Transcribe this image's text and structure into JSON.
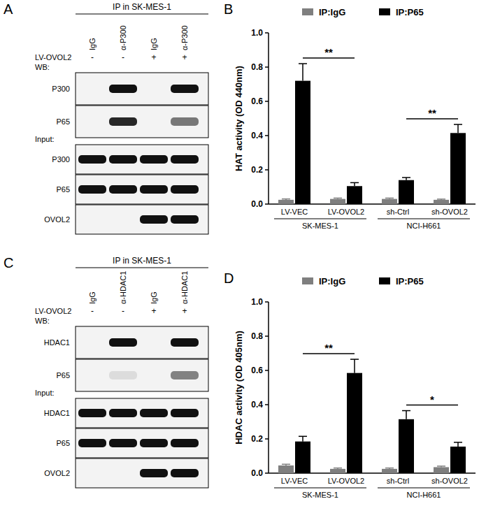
{
  "chart_data": [
    {
      "type": "bar",
      "panel": "B",
      "y_label": "HAT activity (OD 440nm)",
      "categories": [
        "LV-VEC",
        "LV-OVOL2",
        "sh-Ctrl",
        "sh-OVOL2"
      ],
      "groups": [
        {
          "label": "SK-MES-1",
          "count": 2
        },
        {
          "label": "NCI-H661",
          "count": 2
        }
      ],
      "series": [
        {
          "name": "IP:IgG",
          "color": "#7f7f7f",
          "values": [
            0.025,
            0.03,
            0.03,
            0.025
          ],
          "errors": [
            0.005,
            0.005,
            0.005,
            0.004
          ]
        },
        {
          "name": "IP:P65",
          "color": "#000000",
          "values": [
            0.72,
            0.105,
            0.14,
            0.415
          ],
          "errors": [
            0.1,
            0.02,
            0.015,
            0.05
          ]
        }
      ],
      "annotations": [
        {
          "text": "**",
          "between": [
            0,
            1
          ]
        },
        {
          "text": "**",
          "between": [
            2,
            3
          ]
        }
      ],
      "ylim": [
        0,
        1.0
      ],
      "yticks": [
        {
          "value": 0,
          "label": "0.0"
        },
        0.2,
        0.4,
        0.6,
        0.8,
        {
          "value": 1.0,
          "label": "1.0"
        }
      ],
      "legend": "top",
      "grid": false
    },
    {
      "type": "bar",
      "panel": "D",
      "y_label": "HDAC activity (OD 405nm)",
      "categories": [
        "LV-VEC",
        "LV-OVOL2",
        "sh-Ctrl",
        "sh-OVOL2"
      ],
      "groups": [
        {
          "label": "SK-MES-1",
          "count": 2
        },
        {
          "label": "NCI-H661",
          "count": 2
        }
      ],
      "series": [
        {
          "name": "IP:IgG",
          "color": "#7f7f7f",
          "values": [
            0.045,
            0.025,
            0.025,
            0.035
          ],
          "errors": [
            0.007,
            0.005,
            0.005,
            0.006
          ]
        },
        {
          "name": "IP:P65",
          "color": "#000000",
          "values": [
            0.185,
            0.585,
            0.315,
            0.155
          ],
          "errors": [
            0.03,
            0.08,
            0.05,
            0.025
          ]
        }
      ],
      "annotations": [
        {
          "text": "**",
          "between": [
            0,
            1
          ]
        },
        {
          "text": "*",
          "between": [
            2,
            3
          ]
        }
      ],
      "ylim": [
        0,
        1.0
      ],
      "yticks": [
        {
          "value": 0,
          "label": "0.0"
        },
        0.2,
        0.4,
        0.6,
        0.8,
        {
          "value": 1.0,
          "label": "1.0"
        }
      ],
      "legend": "top",
      "grid": false
    }
  ],
  "blots": [
    {
      "panel": "A",
      "header": "IP in SK-MES-1",
      "lanes": [
        "IgG",
        "α-P300",
        "IgG",
        "α-P300"
      ],
      "treatment": {
        "label": "LV-OVOL2",
        "marks": [
          "-",
          "-",
          "+",
          "+"
        ]
      },
      "sections": [
        {
          "label": "WB:",
          "rows": [
            {
              "label": "P300",
              "bands": [
                0,
                1,
                0,
                1
              ]
            },
            {
              "label": "P65",
              "bands": [
                0,
                0.9,
                0,
                0.55
              ]
            }
          ]
        },
        {
          "label": "Input:",
          "rows": [
            {
              "label": "P300",
              "bands": [
                1,
                1,
                1,
                1
              ]
            },
            {
              "label": "P65",
              "bands": [
                1,
                1,
                1,
                1
              ]
            },
            {
              "label": "OVOL2",
              "bands": [
                0,
                0,
                1,
                1
              ]
            }
          ]
        }
      ]
    },
    {
      "panel": "C",
      "header": "IP in SK-MES-1",
      "lanes": [
        "IgG",
        "α-HDAC1",
        "IgG",
        "α-HDAC1"
      ],
      "treatment": {
        "label": "LV-OVOL2",
        "marks": [
          "-",
          "-",
          "+",
          "+"
        ]
      },
      "sections": [
        {
          "label": "WB:",
          "rows": [
            {
              "label": "HDAC1",
              "bands": [
                0,
                1,
                0,
                1
              ]
            },
            {
              "label": "P65",
              "bands": [
                0,
                0.1,
                0,
                0.5
              ]
            }
          ]
        },
        {
          "label": "Input:",
          "rows": [
            {
              "label": "HDAC1",
              "bands": [
                1,
                1,
                1,
                1
              ]
            },
            {
              "label": "P65",
              "bands": [
                1,
                1,
                1,
                1
              ]
            },
            {
              "label": "OVOL2",
              "bands": [
                0,
                0,
                1,
                1
              ]
            }
          ]
        }
      ]
    }
  ]
}
